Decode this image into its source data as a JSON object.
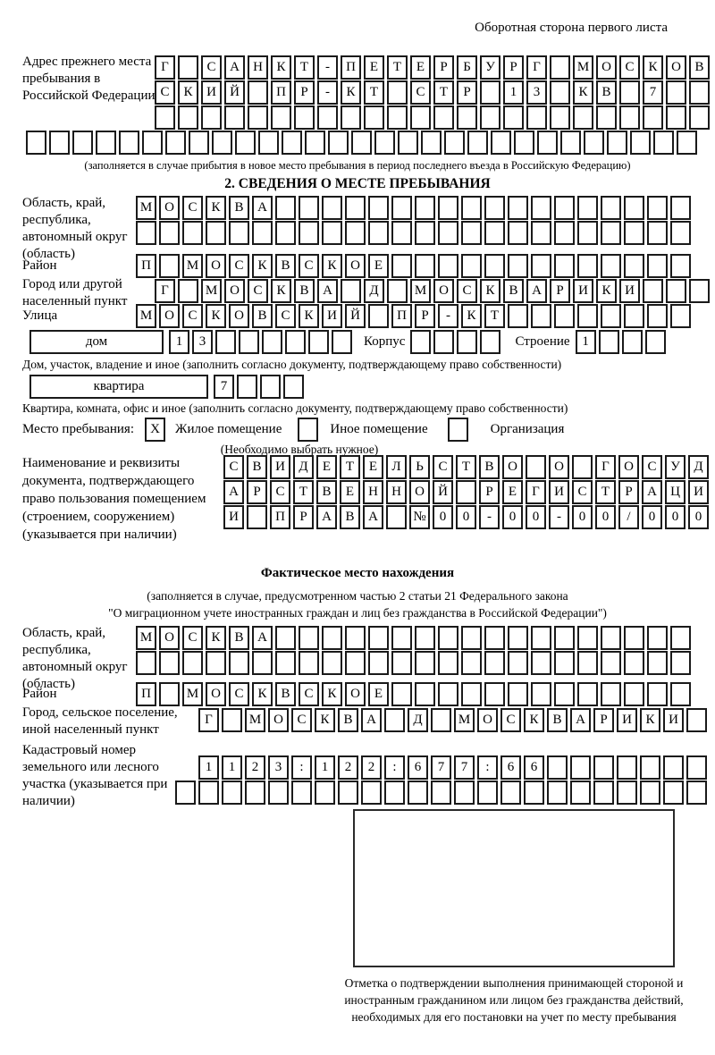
{
  "page": {
    "header_note": "Оборотная сторона первого листа"
  },
  "prev_address": {
    "label": "Адрес прежнего места пребывания в Российской Федерации",
    "rows": [
      [
        "Г",
        "",
        "С",
        "А",
        "Н",
        "К",
        "Т",
        "-",
        "П",
        "Е",
        "Т",
        "Е",
        "Р",
        "Б",
        "У",
        "Р",
        "Г",
        "",
        "М",
        "О",
        "С",
        "К",
        "О",
        "В"
      ],
      [
        "С",
        "К",
        "И",
        "Й",
        "",
        "П",
        "Р",
        "-",
        "К",
        "Т",
        "",
        "С",
        "Т",
        "Р",
        "",
        "1",
        "3",
        "",
        "К",
        "В",
        "",
        "7",
        "",
        ""
      ],
      [
        "",
        "",
        "",
        "",
        "",
        "",
        "",
        "",
        "",
        "",
        "",
        "",
        "",
        "",
        "",
        "",
        "",
        "",
        "",
        "",
        "",
        "",
        "",
        ""
      ]
    ],
    "overflow_row": [
      "",
      "",
      "",
      "",
      "",
      "",
      "",
      "",
      "",
      "",
      "",
      "",
      "",
      "",
      "",
      "",
      "",
      "",
      "",
      "",
      "",
      "",
      "",
      "",
      "",
      "",
      "",
      "",
      ""
    ],
    "note": "(заполняется в случае прибытия в новое место пребывания в период последнего въезда в Российскую Федерацию)"
  },
  "section2": {
    "title": "2. СВЕДЕНИЯ О МЕСТЕ ПРЕБЫВАНИЯ",
    "region": {
      "label": "Область, край, республика, автономный округ (область)",
      "row1": [
        "М",
        "О",
        "С",
        "К",
        "В",
        "А",
        "",
        "",
        "",
        "",
        "",
        "",
        "",
        "",
        "",
        "",
        "",
        "",
        "",
        "",
        "",
        "",
        "",
        ""
      ],
      "row2": [
        "",
        "",
        "",
        "",
        "",
        "",
        "",
        "",
        "",
        "",
        "",
        "",
        "",
        "",
        "",
        "",
        "",
        "",
        "",
        "",
        "",
        "",
        "",
        ""
      ]
    },
    "district": {
      "label": "Район",
      "row": [
        "П",
        "",
        "М",
        "О",
        "С",
        "К",
        "В",
        "С",
        "К",
        "О",
        "Е",
        "",
        "",
        "",
        "",
        "",
        "",
        "",
        "",
        "",
        "",
        "",
        "",
        ""
      ]
    },
    "city": {
      "label": "Город или другой населенный пункт",
      "row": [
        "Г",
        "",
        "М",
        "О",
        "С",
        "К",
        "В",
        "А",
        "",
        "Д",
        "",
        "М",
        "О",
        "С",
        "К",
        "В",
        "А",
        "Р",
        "И",
        "К",
        "И",
        "",
        "",
        ""
      ]
    },
    "street": {
      "label": "Улица",
      "row": [
        "М",
        "О",
        "С",
        "К",
        "О",
        "В",
        "С",
        "К",
        "И",
        "Й",
        "",
        "П",
        "Р",
        "-",
        "К",
        "Т",
        "",
        "",
        "",
        "",
        "",
        "",
        "",
        ""
      ]
    },
    "house": {
      "box_label": "дом",
      "cells": [
        "1",
        "3",
        "",
        "",
        "",
        "",
        "",
        ""
      ],
      "korpus_label": "Корпус",
      "korpus_cells": [
        "",
        "",
        "",
        ""
      ],
      "stroenie_label": "Строение",
      "stroenie_cells": [
        "1",
        "",
        "",
        ""
      ],
      "note": "Дом, участок, владение и иное (заполнить согласно документу, подтверждающему право собственности)"
    },
    "apartment": {
      "box_label": "квартира",
      "cells": [
        "7",
        "",
        "",
        ""
      ],
      "note": "Квартира, комната, офис и иное (заполнить согласно документу, подтверждающему право собственности)"
    },
    "stay_type": {
      "label": "Место пребывания:",
      "options": [
        {
          "label": "Жилое помещение",
          "mark": "X"
        },
        {
          "label": "Иное помещение",
          "mark": ""
        },
        {
          "label": "Организация",
          "mark": ""
        }
      ],
      "note": "(Необходимо выбрать нужное)"
    },
    "document": {
      "label": "Наименование и реквизиты документа, подтверждающего право пользования помещением (строением, сооружением) (указывается при наличии)",
      "row1": [
        "С",
        "В",
        "И",
        "Д",
        "Е",
        "Т",
        "Е",
        "Л",
        "Ь",
        "С",
        "Т",
        "В",
        "О",
        "",
        "О",
        "",
        "Г",
        "О",
        "С",
        "У",
        "Д"
      ],
      "row2": [
        "А",
        "Р",
        "С",
        "Т",
        "В",
        "Е",
        "Н",
        "Н",
        "О",
        "Й",
        "",
        "Р",
        "Е",
        "Г",
        "И",
        "С",
        "Т",
        "Р",
        "А",
        "Ц",
        "И"
      ],
      "row3": [
        "И",
        "",
        "П",
        "Р",
        "А",
        "В",
        "А",
        "",
        "№",
        "0",
        "0",
        "-",
        "0",
        "0",
        "-",
        "0",
        "0",
        "/",
        "0",
        "0",
        "0"
      ]
    }
  },
  "actual_location": {
    "title": "Фактическое место нахождения",
    "note_line1": "(заполняется в случае, предусмотренном частью 2 статьи 21 Федерального закона",
    "note_line2": "\"О миграционном учете иностранных граждан и лиц без гражданства в Российской Федерации\")",
    "region": {
      "label": "Область, край, республика, автономный округ (область)",
      "row1": [
        "М",
        "О",
        "С",
        "К",
        "В",
        "А",
        "",
        "",
        "",
        "",
        "",
        "",
        "",
        "",
        "",
        "",
        "",
        "",
        "",
        "",
        "",
        "",
        "",
        ""
      ],
      "row2": [
        "",
        "",
        "",
        "",
        "",
        "",
        "",
        "",
        "",
        "",
        "",
        "",
        "",
        "",
        "",
        "",
        "",
        "",
        "",
        "",
        "",
        "",
        "",
        ""
      ]
    },
    "district": {
      "label": "Район",
      "row": [
        "П",
        "",
        "М",
        "О",
        "С",
        "К",
        "В",
        "С",
        "К",
        "О",
        "Е",
        "",
        "",
        "",
        "",
        "",
        "",
        "",
        "",
        "",
        "",
        "",
        "",
        ""
      ]
    },
    "city": {
      "label": "Город, сельское поселение, иной населенный пункт",
      "row": [
        "Г",
        "",
        "М",
        "О",
        "С",
        "К",
        "В",
        "А",
        "",
        "Д",
        "",
        "М",
        "О",
        "С",
        "К",
        "В",
        "А",
        "Р",
        "И",
        "К",
        "И",
        ""
      ]
    },
    "cadastre": {
      "label": "Кадастровый номер земельного или лесного участка (указывается при наличии)",
      "row1": [
        "1",
        "1",
        "2",
        "3",
        ":",
        "1",
        "2",
        "2",
        ":",
        "6",
        "7",
        "7",
        ":",
        "6",
        "6",
        "",
        "",
        "",
        "",
        "",
        "",
        ""
      ],
      "row2": [
        "",
        "",
        "",
        "",
        "",
        "",
        "",
        "",
        "",
        "",
        "",
        "",
        "",
        "",
        "",
        "",
        "",
        "",
        "",
        "",
        "",
        "",
        ""
      ]
    },
    "stamp_caption": "Отметка о подтверждении выполнения принимающей стороной и иностранным гражданином или лицом без гражданства действий, необходимых для его постановки на учет по месту пребывания"
  }
}
